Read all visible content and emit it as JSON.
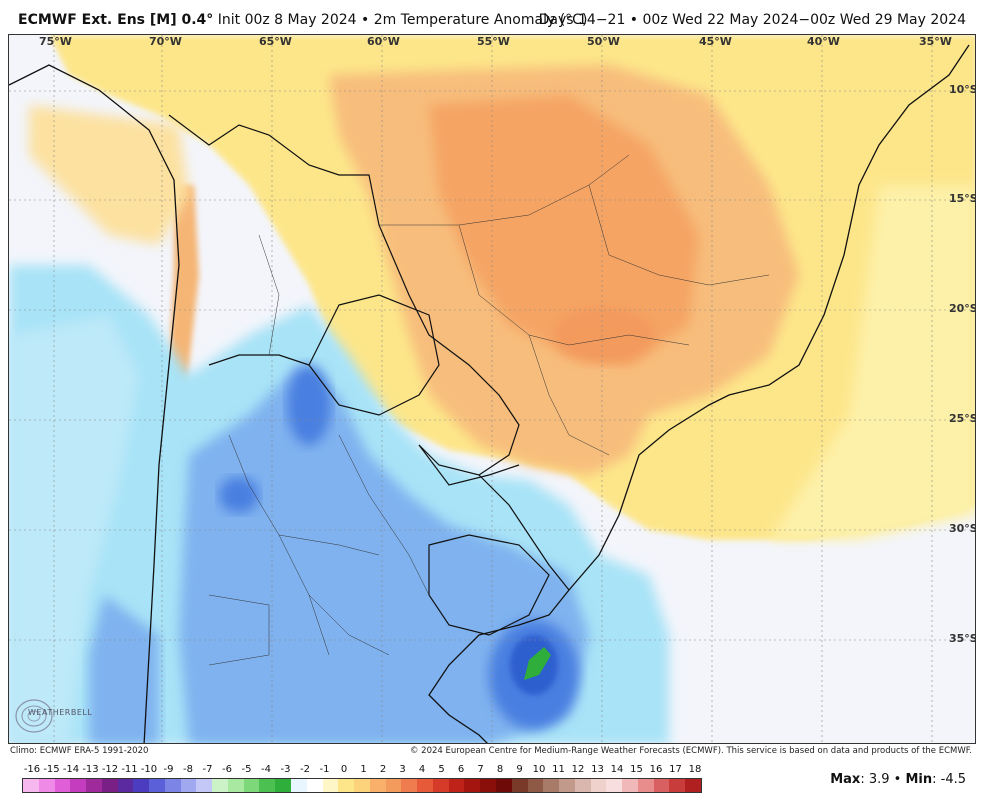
{
  "header": {
    "model": "ECMWF Ext. Ens [M] 0.4°",
    "run": "Init 00z 8 May 2024 • 2m Temperature Anomaly (°C)",
    "valid": "Days 14−21 • 00z Wed 22 May 2024−00z Wed 29 May 2024"
  },
  "map": {
    "longitude_labels": [
      "75°W",
      "70°W",
      "65°W",
      "60°W",
      "55°W",
      "50°W",
      "45°W",
      "40°W",
      "35°W"
    ],
    "latitude_labels": [
      "10°S",
      "15°S",
      "20°S",
      "25°S",
      "30°S",
      "35°S"
    ],
    "land_color_warm": "#f5b574",
    "land_color_hot": "#f39a5d",
    "land_color_mild": "#fde68a",
    "ocean_color_neutral": "#f3f5fb",
    "cold_color_light": "#a8e3f7",
    "cold_color_mid": "#7fb2ef",
    "cold_color_deep": "#4a7fe0",
    "min_anomaly_color": "#2fae3c"
  },
  "footer": {
    "climo": "Climo: ECMWF ERA-5 1991-2020",
    "copyright": "© 2024 European Centre for Medium-Range Weather Forecasts (ECMWF). This service is based on data and products of the ECMWF."
  },
  "colorbar": {
    "labels": [
      "-16",
      "-15",
      "-14",
      "-13",
      "-12",
      "-11",
      "-10",
      "-9",
      "-8",
      "-7",
      "-6",
      "-5",
      "-4",
      "-3",
      "-2",
      "-1",
      "0",
      "1",
      "2",
      "3",
      "4",
      "5",
      "6",
      "7",
      "8",
      "9",
      "10",
      "11",
      "12",
      "13",
      "14",
      "15",
      "16",
      "17",
      "18"
    ],
    "colors": [
      "#f7b8f0",
      "#ef8ae6",
      "#e05fd8",
      "#c43dbf",
      "#9e2a9c",
      "#7a1f86",
      "#5c2aa0",
      "#4b3cc0",
      "#5c60d8",
      "#7c84e6",
      "#a0a8f0",
      "#c3c8f6",
      "#ccf3c8",
      "#a8e8a0",
      "#7cd878",
      "#4cc050",
      "#2fae3c",
      "#e8f6ff",
      "#ffffff",
      "#fff6c8",
      "#fde68a",
      "#fcd27a",
      "#f8b06a",
      "#f39a5d",
      "#ee7c4e",
      "#e65a3a",
      "#d63a28",
      "#bf2218",
      "#a5150f",
      "#8a0f0a",
      "#6e0a08",
      "#7a3a2a",
      "#8e5a46",
      "#a77b68",
      "#c29a8c",
      "#d9b6ae",
      "#f0d2cc",
      "#f8dede",
      "#f0b8b8",
      "#e88c8c",
      "#d96060",
      "#c83c3c",
      "#b02020"
    ],
    "max_label": "Max",
    "max_value": "3.9",
    "min_label": "Min",
    "min_value": "-4.5"
  },
  "logo": {
    "text": "WEATHERBELL"
  }
}
